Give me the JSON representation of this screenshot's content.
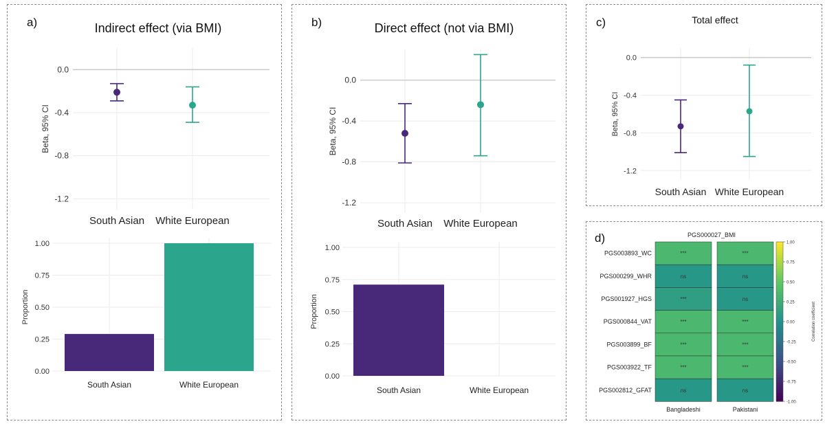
{
  "colors": {
    "south_asian": "#482878",
    "white_european": "#2ca58d",
    "grid": "#ebebeb",
    "zero_line": "#cccccc",
    "text": "#222222"
  },
  "panels": {
    "a": {
      "letter": "a)"
    },
    "b": {
      "letter": "b)"
    },
    "c": {
      "letter": "c)"
    },
    "d": {
      "letter": "d)"
    }
  },
  "chart_data": [
    {
      "id": "a_top",
      "type": "scatter",
      "title": "Indirect effect (via BMI)",
      "ylabel": "Beta, 95% CI",
      "categories": [
        "South Asian",
        "White European"
      ],
      "yticks": [
        "0.0",
        "-0.4",
        "-0.8",
        "-1.2"
      ],
      "ylim": [
        -1.3,
        0.2
      ],
      "points": [
        {
          "category": "South Asian",
          "beta": -0.21,
          "lower": -0.29,
          "upper": -0.13
        },
        {
          "category": "White European",
          "beta": -0.33,
          "lower": -0.49,
          "upper": -0.16
        }
      ]
    },
    {
      "id": "a_bottom",
      "type": "bar",
      "ylabel": "Proportion",
      "categories": [
        "South Asian",
        "White European"
      ],
      "values": [
        0.29,
        1.0
      ],
      "yticks": [
        "0.00",
        "0.25",
        "0.50",
        "0.75",
        "1.00"
      ],
      "ylim": [
        0,
        1
      ]
    },
    {
      "id": "b_top",
      "type": "scatter",
      "title": "Direct effect (not via BMI)",
      "ylabel": "Beta, 95% CI",
      "categories": [
        "South Asian",
        "White European"
      ],
      "yticks": [
        "0.0",
        "-0.4",
        "-0.8",
        "-1.2"
      ],
      "ylim": [
        -1.3,
        0.3
      ],
      "points": [
        {
          "category": "South Asian",
          "beta": -0.52,
          "lower": -0.81,
          "upper": -0.23
        },
        {
          "category": "White European",
          "beta": -0.24,
          "lower": -0.74,
          "upper": 0.25
        }
      ]
    },
    {
      "id": "b_bottom",
      "type": "bar",
      "ylabel": "Proportion",
      "categories": [
        "South Asian",
        "White European"
      ],
      "values": [
        0.71,
        0.0
      ],
      "yticks": [
        "0.00",
        "0.25",
        "0.50",
        "0.75",
        "1.00"
      ],
      "ylim": [
        0,
        1
      ]
    },
    {
      "id": "c_top",
      "type": "scatter",
      "title": "Total effect",
      "ylabel": "Beta, 95% CI",
      "categories": [
        "South Asian",
        "White European"
      ],
      "yticks": [
        "0.0",
        "-0.4",
        "-0.8",
        "-1.2"
      ],
      "ylim": [
        -1.3,
        0.1
      ],
      "points": [
        {
          "category": "South Asian",
          "beta": -0.73,
          "lower": -1.01,
          "upper": -0.45
        },
        {
          "category": "White European",
          "beta": -0.57,
          "lower": -1.05,
          "upper": -0.08
        }
      ]
    },
    {
      "id": "d_heatmap",
      "type": "heatmap",
      "title": "PGS000027_BMI",
      "rows": [
        "PGS003893_WC",
        "PGS000299_WHR",
        "PGS001927_HGS",
        "PGS000844_VAT",
        "PGS003899_BF",
        "PGS003922_TF",
        "PGS002812_GFAT"
      ],
      "columns": [
        "Bangladeshi",
        "Pakistani"
      ],
      "values": [
        [
          0.35,
          0.35
        ],
        [
          0.05,
          0.05
        ],
        [
          0.12,
          0.05
        ],
        [
          0.35,
          0.35
        ],
        [
          0.35,
          0.35
        ],
        [
          0.35,
          0.35
        ],
        [
          0.05,
          0.05
        ]
      ],
      "annotations": [
        [
          "***",
          "***"
        ],
        [
          "ns",
          "ns"
        ],
        [
          "***",
          "ns"
        ],
        [
          "***",
          "***"
        ],
        [
          "***",
          "***"
        ],
        [
          "***",
          "***"
        ],
        [
          "ns",
          "ns"
        ]
      ],
      "colorbar": {
        "label": "Correlation coefficient",
        "range": [
          -1,
          1
        ],
        "ticks": [
          "1.00",
          "0.75",
          "0.50",
          "0.25",
          "0.00",
          "-0.25",
          "-0.50",
          "-0.75",
          "-1.00"
        ]
      }
    }
  ]
}
